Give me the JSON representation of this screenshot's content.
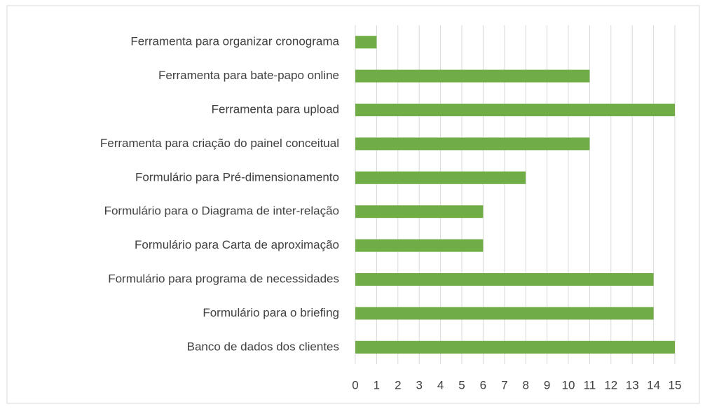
{
  "chart_data": {
    "type": "bar",
    "orientation": "horizontal",
    "categories": [
      "Ferramenta para organizar cronograma",
      "Ferramenta para bate-papo online",
      "Ferramenta para upload",
      "Ferramenta para criação do painel conceitual",
      "Formulário para Pré-dimensionamento",
      "Formulário para o Diagrama de inter-relação",
      "Formulário para Carta de aproximação",
      "Formulário para programa de necessidades",
      "Formulário para o briefing",
      "Banco de dados dos clientes"
    ],
    "values": [
      1,
      11,
      15,
      11,
      8,
      6,
      6,
      14,
      14,
      15
    ],
    "color": "#70ad47",
    "xlim": [
      0,
      15
    ],
    "xticks": [
      0,
      1,
      2,
      3,
      4,
      5,
      6,
      7,
      8,
      9,
      10,
      11,
      12,
      13,
      14,
      15
    ],
    "grid": true
  }
}
